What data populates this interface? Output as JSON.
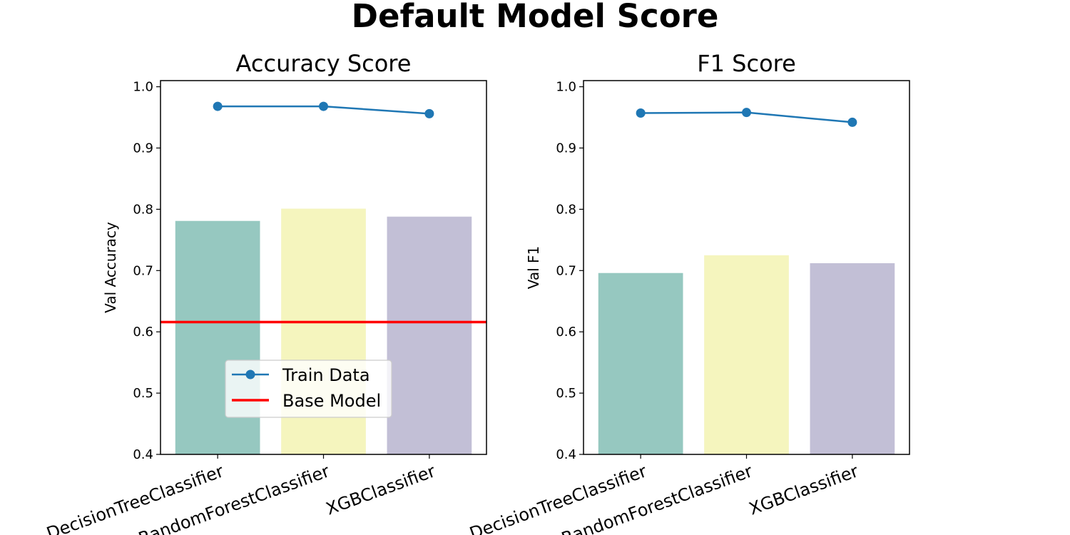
{
  "suptitle": "Default Model Score",
  "colors": {
    "bars": [
      "#96c8c0",
      "#f5f5be",
      "#c2bfd6"
    ],
    "train_line": "#1f77b4",
    "base_line": "#ff0000"
  },
  "chart_data": [
    {
      "type": "bar",
      "title": "Accuracy Score",
      "xlabel": "",
      "ylabel": "Val Accuracy",
      "ylim": [
        0.4,
        1.01
      ],
      "yticks": [
        0.4,
        0.5,
        0.6,
        0.7,
        0.8,
        0.9,
        1.0
      ],
      "categories": [
        "DecisionTreeClassifier",
        "RandomForestClassifier",
        "XGBClassifier"
      ],
      "values": [
        0.781,
        0.801,
        0.788
      ],
      "train_data": {
        "name": "Train Data",
        "values": [
          0.968,
          0.968,
          0.956
        ]
      },
      "base_model": {
        "name": "Base Model",
        "value": 0.616
      },
      "legend": "lower-center"
    },
    {
      "type": "bar",
      "title": "F1 Score",
      "xlabel": "",
      "ylabel": "Val F1",
      "ylim": [
        0.4,
        1.01
      ],
      "yticks": [
        0.4,
        0.5,
        0.6,
        0.7,
        0.8,
        0.9,
        1.0
      ],
      "categories": [
        "DecisionTreeClassifier",
        "RandomForestClassifier",
        "XGBClassifier"
      ],
      "values": [
        0.696,
        0.725,
        0.712
      ],
      "train_data": {
        "values": [
          0.957,
          0.958,
          0.942
        ]
      }
    }
  ]
}
